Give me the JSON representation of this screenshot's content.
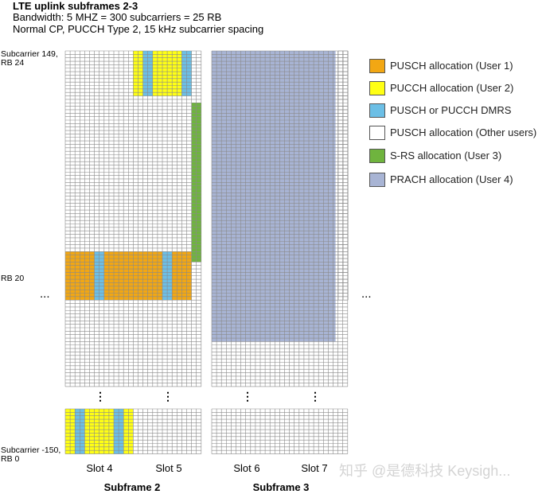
{
  "header": {
    "title": "LTE uplink subframes 2-3",
    "line1": "Bandwidth: 5 MHZ = 300 subcarriers = 25 RB",
    "line2": "Normal CP, PUCCH Type 2, 15 kHz subcarrier spacing"
  },
  "left_labels": {
    "top_a": "Subcarrier 149,",
    "top_b": "RB 24",
    "mid": "RB 20",
    "bot_a": "Subcarrier -150,",
    "bot_b": "RB 0"
  },
  "ellipsis": "...",
  "legend": [
    {
      "label": "PUSCH allocation (User 1)",
      "color": "#f2a713"
    },
    {
      "label": "PUCCH allocation (User 2)",
      "color": "#ffff14"
    },
    {
      "label": "PUSCH or PUCCH DMRS",
      "color": "#6cbfe6"
    },
    {
      "label": "PUSCH allocation (Other users)",
      "color": "#ffffff"
    },
    {
      "label": "S-RS allocation (User 3)",
      "color": "#6fb43e"
    },
    {
      "label": "PRACH allocation  (User 4)",
      "color": "#a8b4d4"
    }
  ],
  "slots": [
    "Slot 4",
    "Slot 5",
    "Slot 6",
    "Slot 7"
  ],
  "subframes": [
    "Subframe 2",
    "Subframe 3"
  ],
  "watermark": "知乎 @是德科技 Keysigh...",
  "colors": {
    "grid_line": "#8a8a8a",
    "pusch_user1": "#f2a713",
    "pucch_user2": "#ffff14",
    "dmrs": "#6cbfe6",
    "srs_user3": "#6fb43e",
    "prach_user4": "#a8b4d4"
  }
}
